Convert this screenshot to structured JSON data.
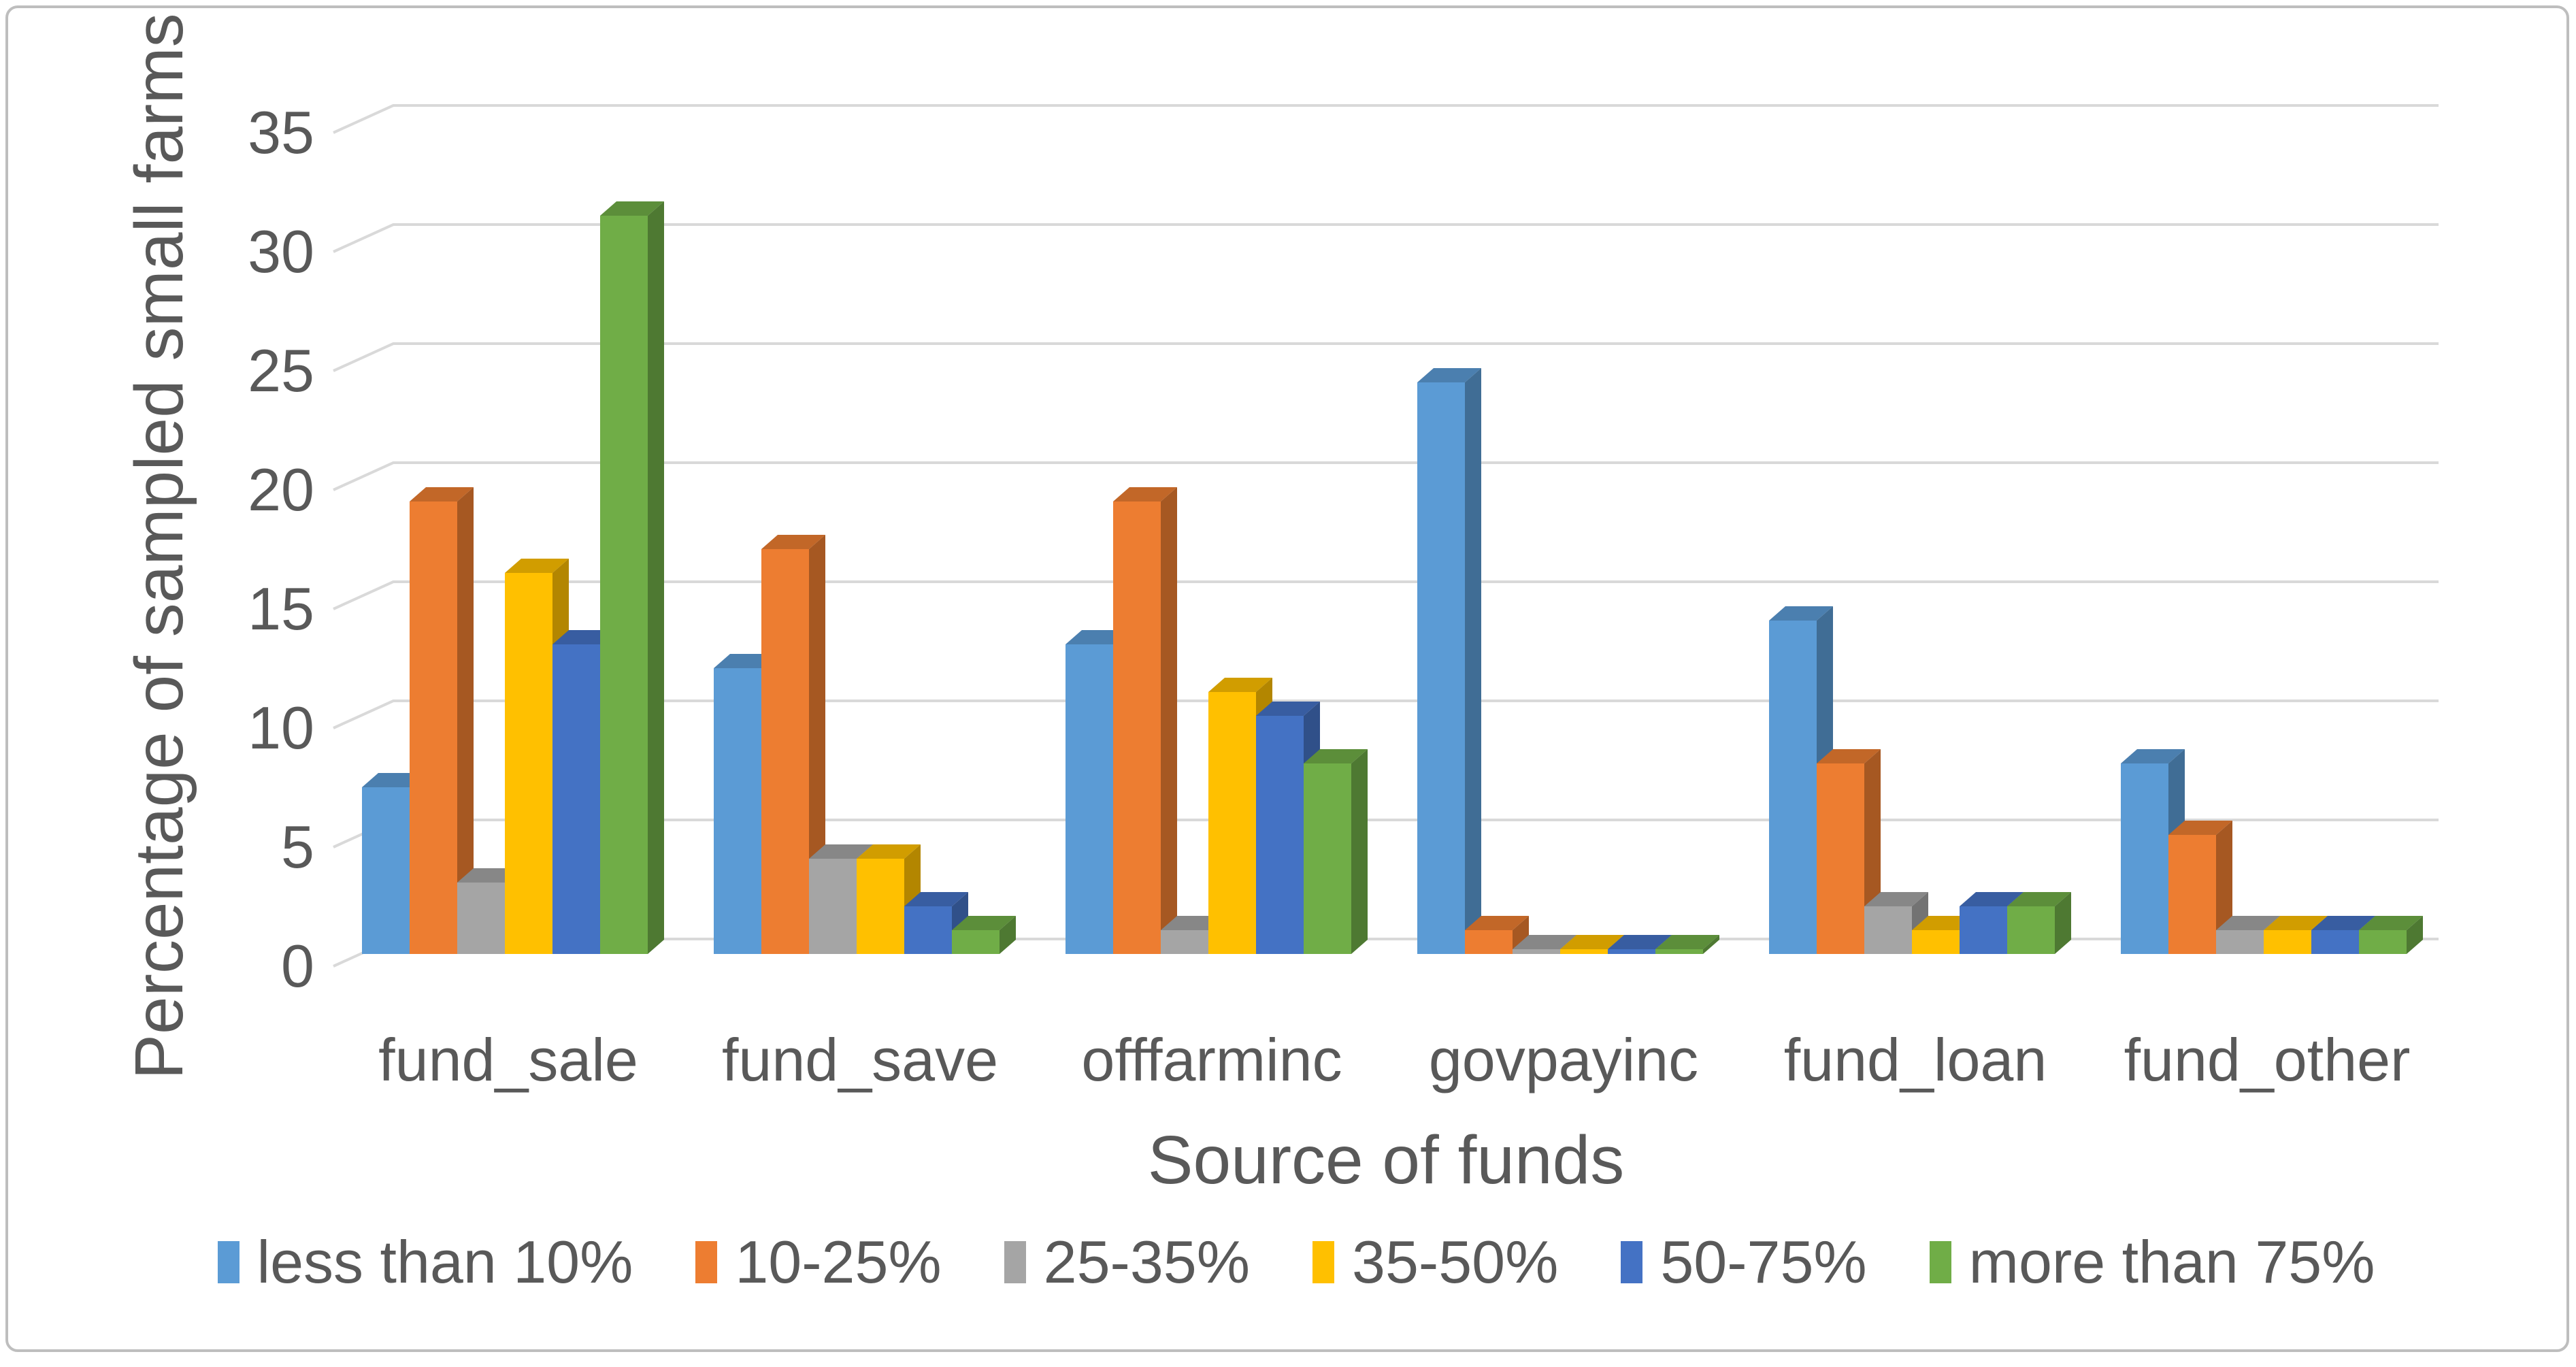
{
  "frame": {
    "background_color": "#FFFFFF",
    "border_color": "#BEBEBE"
  },
  "chart_data": {
    "type": "bar",
    "subtype": "3d-clustered-column",
    "title": "",
    "xlabel": "Source of funds",
    "ylabel": "Percentage of sampled small farms",
    "categories": [
      "fund_sale",
      "fund_save",
      "offfarminc",
      "govpayinc",
      "fund_loan",
      "fund_other"
    ],
    "series": [
      {
        "name": "less than 10%",
        "color": "#5B9BD5",
        "values": [
          7,
          12,
          13,
          24,
          14,
          8
        ]
      },
      {
        "name": "10-25%",
        "color": "#ED7D31",
        "values": [
          19,
          17,
          19,
          1,
          8,
          5
        ]
      },
      {
        "name": "25-35%",
        "color": "#A5A5A5",
        "values": [
          3,
          4,
          1,
          0.2,
          2,
          1
        ]
      },
      {
        "name": "35-50%",
        "color": "#FFC000",
        "values": [
          16,
          4,
          11,
          0.2,
          1,
          1
        ]
      },
      {
        "name": "50-75%",
        "color": "#4472C4",
        "values": [
          13,
          2,
          10,
          0.2,
          2,
          1
        ]
      },
      {
        "name": "more than 75%",
        "color": "#70AD47",
        "values": [
          31,
          1,
          8,
          0.2,
          2,
          1
        ]
      }
    ],
    "y_ticks": [
      0,
      5,
      10,
      15,
      20,
      25,
      30,
      35
    ],
    "ylim": [
      0,
      35
    ],
    "grid": true,
    "legend_position": "bottom",
    "axis_text_color": "#595959",
    "gridline_color": "#D9D9D9"
  }
}
